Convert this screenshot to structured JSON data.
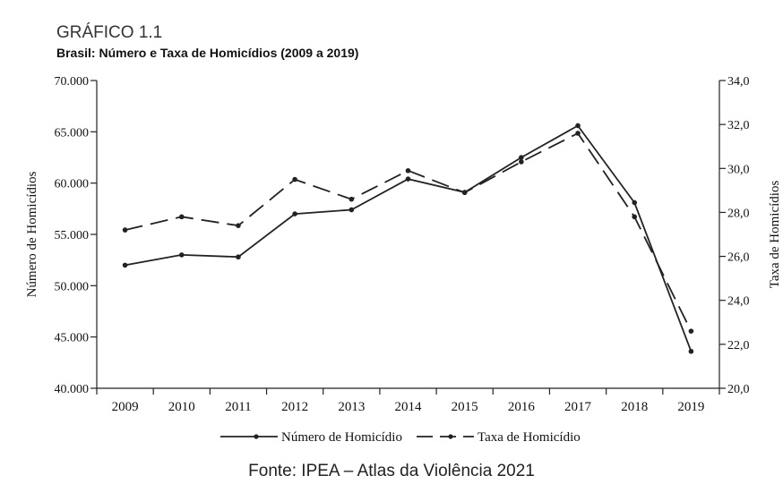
{
  "header": {
    "figure_label": "GRÁFICO 1.1",
    "subtitle": "Brasil: Número e Taxa de Homicídios (2009 a 2019)"
  },
  "footer": {
    "source": "Fonte: IPEA – Atlas da Violência 2021"
  },
  "chart_data": {
    "type": "line",
    "title": "GRÁFICO 1.1",
    "subtitle": "Brasil: Número e Taxa de Homicídios (2009 a 2019)",
    "x": [
      "2009",
      "2010",
      "2011",
      "2012",
      "2013",
      "2014",
      "2015",
      "2016",
      "2017",
      "2018",
      "2019"
    ],
    "ylabel_left": "Número de Homicídios",
    "ylabel_right": "Taxa de Homicídios",
    "y_left": {
      "lim": [
        40000,
        70000
      ],
      "ticks": [
        40000,
        45000,
        50000,
        55000,
        60000,
        65000,
        70000
      ],
      "tick_labels": [
        "40.000",
        "45.000",
        "50.000",
        "55.000",
        "60.000",
        "65.000",
        "70.000"
      ]
    },
    "y_right": {
      "lim": [
        20.0,
        34.0
      ],
      "ticks": [
        20,
        22,
        24,
        26,
        28,
        30,
        32,
        34
      ],
      "tick_labels": [
        "20,0",
        "22,0",
        "24,0",
        "26,0",
        "28,0",
        "30,0",
        "32,0",
        "34,0"
      ]
    },
    "series": [
      {
        "name": "Número de Homicídio",
        "axis": "left",
        "style": "solid",
        "values": [
          52000,
          53000,
          52800,
          57000,
          57400,
          60400,
          59100,
          62500,
          65600,
          58100,
          43600
        ]
      },
      {
        "name": "Taxa de Homicídio",
        "axis": "right",
        "style": "dashed",
        "values": [
          27.2,
          27.8,
          27.4,
          29.5,
          28.6,
          29.9,
          28.9,
          30.3,
          31.6,
          27.8,
          22.6
        ]
      }
    ],
    "legend_position": "bottom-center",
    "grid": false
  }
}
